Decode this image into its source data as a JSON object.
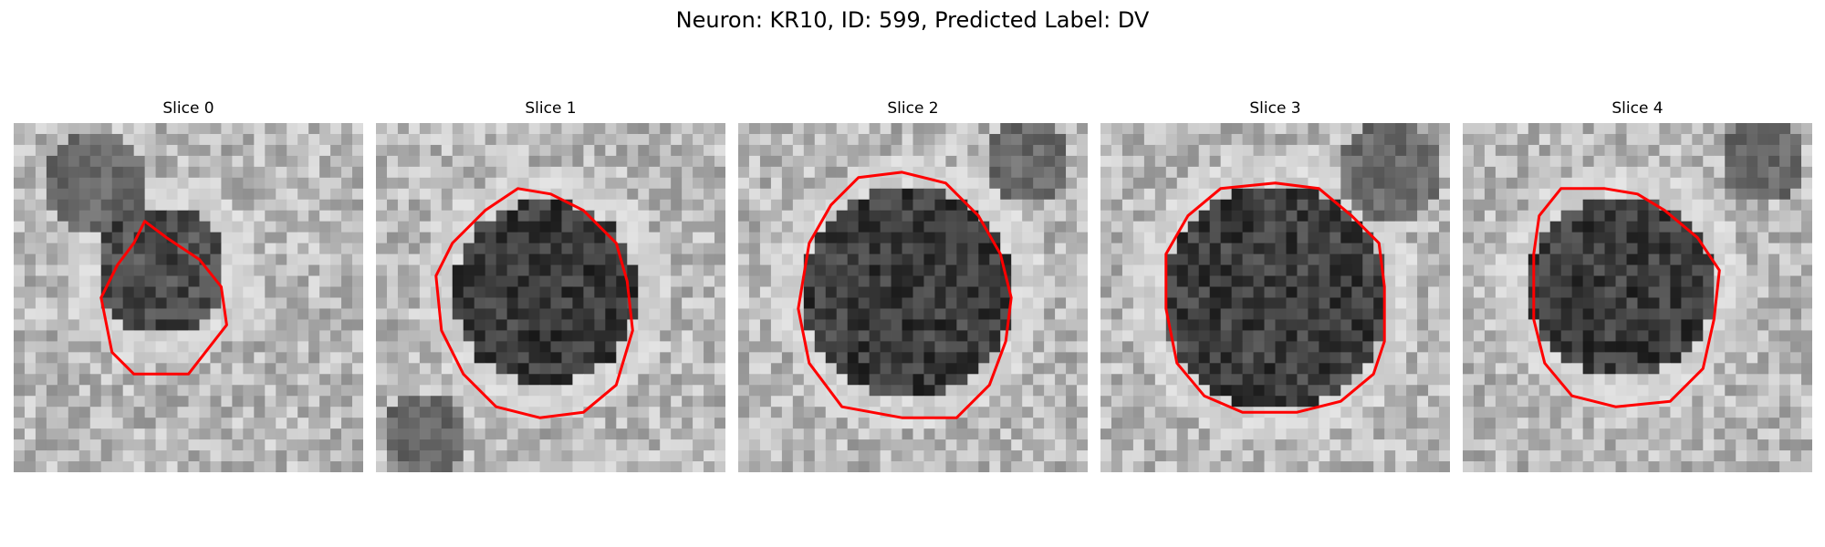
{
  "figure": {
    "title": "Neuron: KR10, ID: 599, Predicted Label: DV"
  },
  "panels": [
    {
      "title": "Slice 0"
    },
    {
      "title": "Slice 1"
    },
    {
      "title": "Slice 2"
    },
    {
      "title": "Slice 3"
    },
    {
      "title": "Slice 4"
    }
  ],
  "style": {
    "contour_color": "#ff0000",
    "image_colormap": "grayscale"
  }
}
